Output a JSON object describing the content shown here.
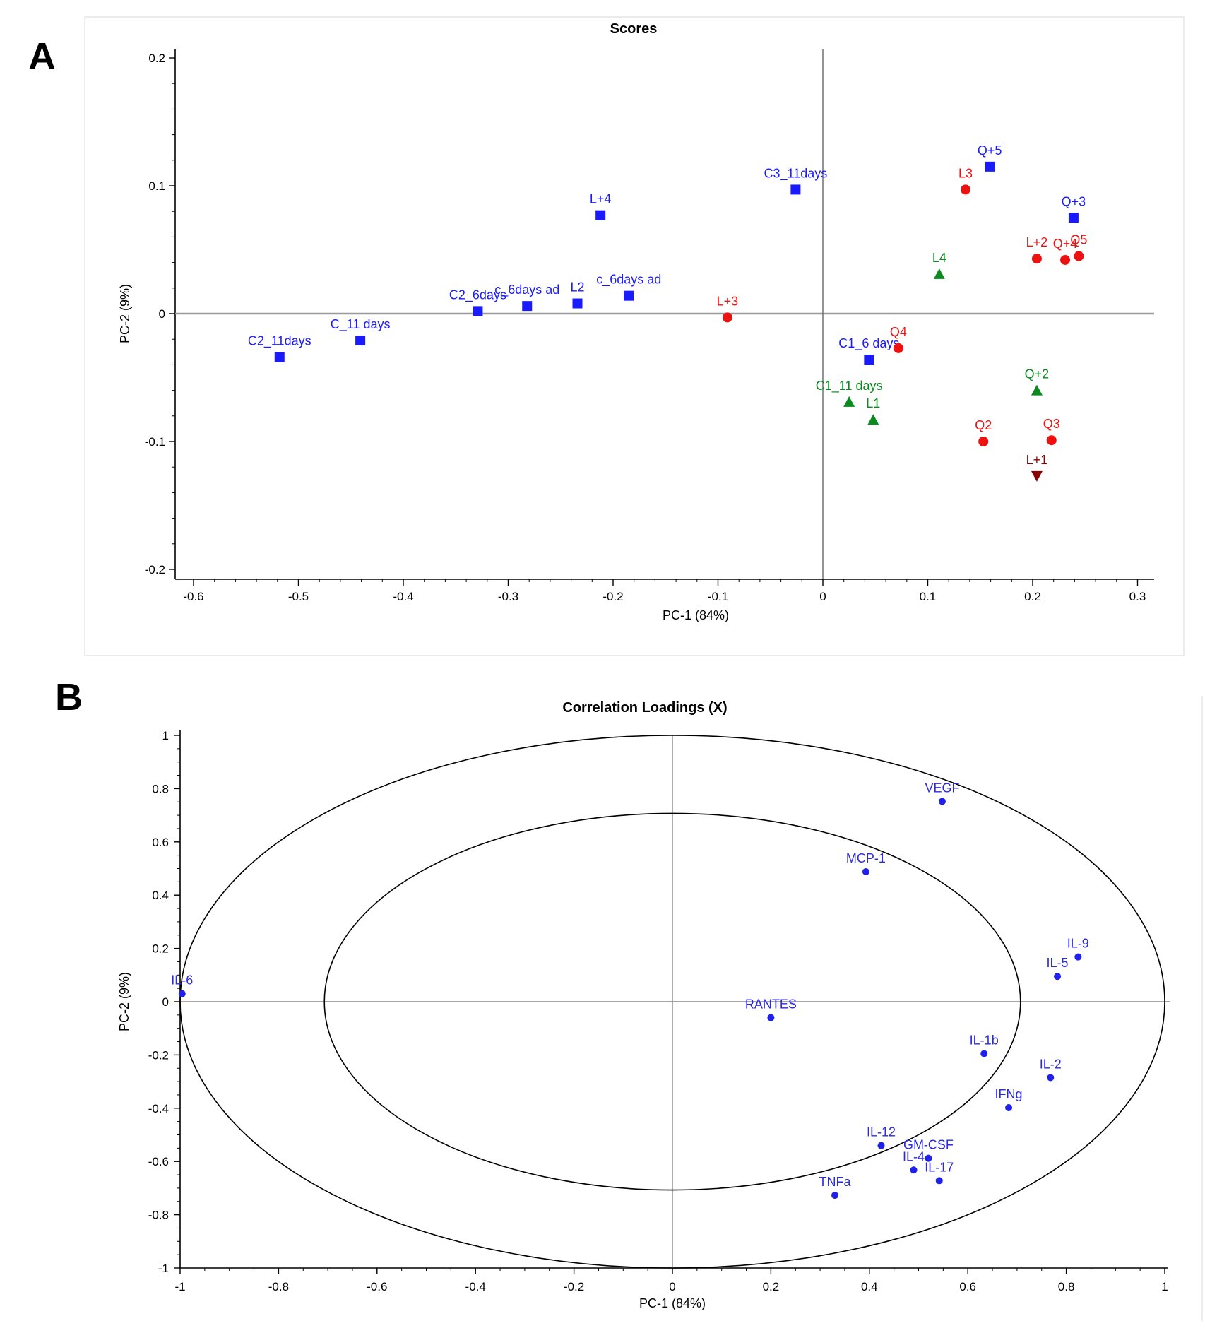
{
  "colors": {
    "blue": "#1a1aff",
    "red": "#ee1111",
    "green": "#0a8a1f",
    "darkred": "#8b0000",
    "loading_blue": "#2020ee",
    "zero_line": "#9a9a9a"
  },
  "chart_data": [
    {
      "panel": "A",
      "type": "scatter",
      "title": "Scores",
      "xlabel": "PC-1 (84%)",
      "ylabel": "PC-2 (9%)",
      "xlim": [
        -0.61,
        0.31
      ],
      "ylim": [
        -0.205,
        0.205
      ],
      "xticks": [
        -0.6,
        -0.5,
        -0.4,
        -0.3,
        -0.2,
        -0.1,
        0,
        0.1,
        0.2,
        0.3
      ],
      "xtick_labels": [
        "-0.6",
        "-0.5",
        "-0.4",
        "-0.3",
        "-0.2",
        "-0.1",
        "0",
        "0.1",
        "0.2",
        "0.3"
      ],
      "yticks": [
        0.2,
        0.1,
        0,
        -0.1,
        -0.2
      ],
      "ytick_labels": [
        "0.2",
        "0.1",
        "0",
        "-0.1",
        "-0.2"
      ],
      "points": [
        {
          "label": "C2_11days",
          "x": -0.518,
          "y": -0.034,
          "marker": "square",
          "color": "blue"
        },
        {
          "label": "C_11 days",
          "x": -0.441,
          "y": -0.021,
          "marker": "square",
          "color": "blue"
        },
        {
          "label": "C2_6days",
          "x": -0.329,
          "y": 0.002,
          "marker": "square",
          "color": "blue"
        },
        {
          "label": "c_6days ad",
          "x": -0.282,
          "y": 0.006,
          "marker": "square",
          "color": "blue"
        },
        {
          "label": "L2",
          "x": -0.234,
          "y": 0.008,
          "marker": "square",
          "color": "blue"
        },
        {
          "label": "c_6days ad",
          "x": -0.185,
          "y": 0.014,
          "marker": "square",
          "color": "blue"
        },
        {
          "label": "L+4",
          "x": -0.212,
          "y": 0.077,
          "marker": "square",
          "color": "blue"
        },
        {
          "label": "C3_11days",
          "x": -0.026,
          "y": 0.097,
          "marker": "square",
          "color": "blue"
        },
        {
          "label": "Q+5",
          "x": 0.159,
          "y": 0.115,
          "marker": "square",
          "color": "blue"
        },
        {
          "label": "Q+3",
          "x": 0.239,
          "y": 0.075,
          "marker": "square",
          "color": "blue"
        },
        {
          "label": "C1_6 days",
          "x": 0.044,
          "y": -0.036,
          "marker": "square",
          "color": "blue"
        },
        {
          "label": "L3",
          "x": 0.136,
          "y": 0.097,
          "marker": "circle",
          "color": "red"
        },
        {
          "label": "L+2",
          "x": 0.204,
          "y": 0.043,
          "marker": "circle",
          "color": "red"
        },
        {
          "label": "Q+4",
          "x": 0.231,
          "y": 0.042,
          "marker": "circle",
          "color": "red"
        },
        {
          "label": "Q5",
          "x": 0.244,
          "y": 0.045,
          "marker": "circle",
          "color": "red"
        },
        {
          "label": "L+3",
          "x": -0.091,
          "y": -0.003,
          "marker": "circle",
          "color": "red"
        },
        {
          "label": "Q4",
          "x": 0.072,
          "y": -0.027,
          "marker": "circle",
          "color": "red"
        },
        {
          "label": "Q2",
          "x": 0.153,
          "y": -0.1,
          "marker": "circle",
          "color": "red"
        },
        {
          "label": "Q3",
          "x": 0.218,
          "y": -0.099,
          "marker": "circle",
          "color": "red"
        },
        {
          "label": "L4",
          "x": 0.111,
          "y": 0.031,
          "marker": "triangle-up",
          "color": "green"
        },
        {
          "label": "C1_11 days",
          "x": 0.025,
          "y": -0.069,
          "marker": "triangle-up",
          "color": "green"
        },
        {
          "label": "L1",
          "x": 0.048,
          "y": -0.083,
          "marker": "triangle-up",
          "color": "green"
        },
        {
          "label": "Q+2",
          "x": 0.204,
          "y": -0.06,
          "marker": "triangle-up",
          "color": "green"
        },
        {
          "label": "L+1",
          "x": 0.204,
          "y": -0.127,
          "marker": "triangle-down",
          "color": "darkred"
        }
      ]
    },
    {
      "panel": "B",
      "type": "scatter",
      "title": "Correlation Loadings (X)",
      "xlabel": "PC-1 (84%)",
      "ylabel": "PC-2 (9%)",
      "xlim": [
        -1,
        1
      ],
      "ylim": [
        -1,
        1
      ],
      "xticks": [
        -1,
        -0.8,
        -0.6,
        -0.4,
        -0.2,
        0,
        0.2,
        0.4,
        0.6,
        0.8,
        1
      ],
      "xtick_labels": [
        "-1",
        "-0.8",
        "-0.6",
        "-0.4",
        "-0.2",
        "0",
        "0.2",
        "0.4",
        "0.6",
        "0.8",
        "1"
      ],
      "yticks": [
        1,
        0.8,
        0.6,
        0.4,
        0.2,
        0,
        -0.2,
        -0.4,
        -0.6,
        -0.8,
        -1
      ],
      "ytick_labels": [
        "1",
        "0.8",
        "0.6",
        "0.4",
        "0.2",
        "0",
        "-0.2",
        "-0.4",
        "-0.6",
        "-0.8",
        "-1"
      ],
      "ellipses": [
        1.0,
        0.707
      ],
      "points": [
        {
          "label": "IL-6",
          "x": -0.996,
          "y": 0.03
        },
        {
          "label": "VEGF",
          "x": 0.548,
          "y": 0.752
        },
        {
          "label": "MCP-1",
          "x": 0.393,
          "y": 0.488
        },
        {
          "label": "IL-9",
          "x": 0.824,
          "y": 0.168
        },
        {
          "label": "IL-5",
          "x": 0.782,
          "y": 0.095
        },
        {
          "label": "RANTES",
          "x": 0.2,
          "y": -0.06
        },
        {
          "label": "IL-1b",
          "x": 0.633,
          "y": -0.195
        },
        {
          "label": "IL-2",
          "x": 0.768,
          "y": -0.285
        },
        {
          "label": "IFNg",
          "x": 0.683,
          "y": -0.398
        },
        {
          "label": "IL-12",
          "x": 0.424,
          "y": -0.54
        },
        {
          "label": "GM-CSF",
          "x": 0.52,
          "y": -0.588
        },
        {
          "label": "IL-4",
          "x": 0.49,
          "y": -0.632
        },
        {
          "label": "IL-17",
          "x": 0.542,
          "y": -0.672
        },
        {
          "label": "TNFa",
          "x": 0.33,
          "y": -0.727
        }
      ]
    }
  ],
  "panels": {
    "a_letter": "A",
    "b_letter": "B"
  }
}
